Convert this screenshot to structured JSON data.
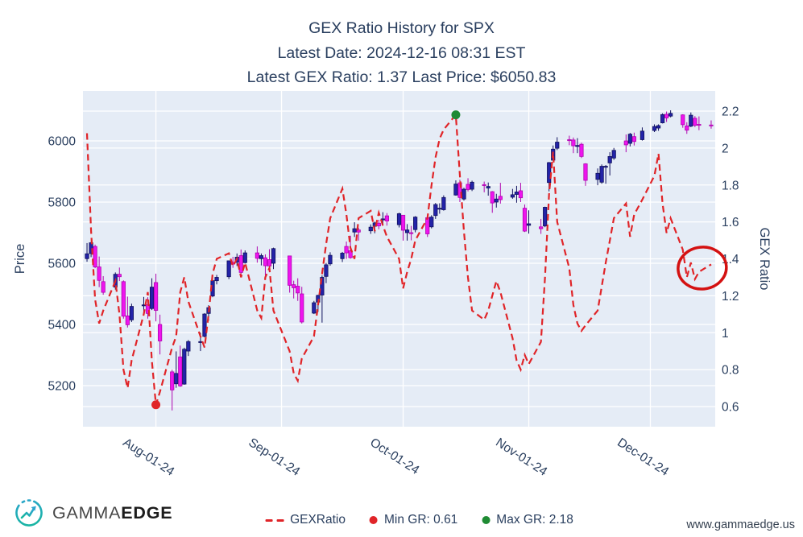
{
  "title": {
    "line1": "GEX Ratio History for SPX",
    "line2": "Latest Date: 2024-12-16 08:31 EST",
    "line3": "Latest GEX Ratio: 1.37 Last Price: $6050.83"
  },
  "logo": {
    "brand_regular": "GAMMA",
    "brand_bold": "EDGE"
  },
  "watermark": "www.gammaedge.us",
  "legend": [
    {
      "label": "GEXRatio",
      "type": "dash",
      "color": "#e02428"
    },
    {
      "label": "Min GR: 0.61",
      "type": "dot",
      "color": "#e02428"
    },
    {
      "label": "Max GR: 2.18",
      "type": "dot",
      "color": "#1f8b33"
    }
  ],
  "chart_data": {
    "type": "candlestick+line",
    "title": "GEX Ratio History for SPX",
    "latest": {
      "date": "2024-12-16 08:31 EST",
      "gex_ratio": 1.37,
      "last_price": 6050.83
    },
    "left_axis": {
      "label": "Price",
      "ticks": [
        5200,
        5400,
        5600,
        5800,
        6000
      ],
      "range": [
        5066,
        6163
      ]
    },
    "right_axis": {
      "label": "GEX Ratio",
      "ticks": [
        0.6,
        0.8,
        1,
        1.2,
        1.4,
        1.6,
        1.8,
        2,
        2.2
      ],
      "range": [
        0.49,
        2.31
      ]
    },
    "x_axis": {
      "range": [
        "2024-07-14",
        "2024-12-17"
      ],
      "ticks": [
        {
          "date": "2024-08-01",
          "label": "Aug-01-24"
        },
        {
          "date": "2024-09-01",
          "label": "Sep-01-24"
        },
        {
          "date": "2024-10-01",
          "label": "Oct-01-24"
        },
        {
          "date": "2024-11-01",
          "label": "Nov-01-24"
        },
        {
          "date": "2024-12-01",
          "label": "Dec-01-24"
        }
      ]
    },
    "colors": {
      "plot_bg": "#E5ECF6",
      "grid": "#ffffff",
      "text": "#2a3f5f",
      "up": "#2323a8",
      "up_line": "#12125e",
      "down": "#ee14ee",
      "down_line": "#b007b0",
      "gex_line": "#e02428",
      "min_dot": "#e02428",
      "max_dot": "#1f8b33",
      "annotation_circle": "#d41111"
    },
    "annotations": {
      "min": {
        "date": "2024-08-01",
        "value": 0.61,
        "label": "Min GR: 0.61"
      },
      "max": {
        "date": "2024-10-14",
        "value": 2.18,
        "label": "Max GR: 2.18"
      },
      "circle": {
        "date": "2024-12-13",
        "value": 1.35,
        "rx": 30,
        "ry": 26
      }
    },
    "series_names": {
      "candles": "SPX OHLC",
      "line": "GEXRatio"
    },
    "rows_format": [
      "date",
      "open",
      "high",
      "low",
      "close",
      "gex_ratio"
    ],
    "rows": [
      [
        "2024-07-15",
        5615,
        5666,
        5605,
        5631,
        2.08
      ],
      [
        "2024-07-16",
        5632,
        5670,
        5620,
        5667,
        1.55
      ],
      [
        "2024-07-17",
        5655,
        5661,
        5584,
        5588,
        1.18
      ],
      [
        "2024-07-18",
        5588,
        5622,
        5522,
        5544,
        1.05
      ],
      [
        "2024-07-19",
        5540,
        5558,
        5497,
        5505,
        1.12
      ],
      [
        "2024-07-22",
        5522,
        5570,
        5514,
        5564,
        1.28
      ],
      [
        "2024-07-23",
        5564,
        5586,
        5542,
        5556,
        1.1
      ],
      [
        "2024-07-24",
        5540,
        5544,
        5419,
        5427,
        0.8
      ],
      [
        "2024-07-25",
        5428,
        5491,
        5390,
        5399,
        0.7
      ],
      [
        "2024-07-26",
        5415,
        5468,
        5408,
        5459,
        0.85
      ],
      [
        "2024-07-29",
        5461,
        5490,
        5441,
        5464,
        1.1
      ],
      [
        "2024-07-30",
        5465,
        5489,
        5419,
        5436,
        1.22
      ],
      [
        "2024-07-31",
        5452,
        5551,
        5447,
        5522,
        0.85
      ],
      [
        "2024-08-01",
        5537,
        5566,
        5410,
        5446,
        0.61
      ],
      [
        "2024-08-02",
        5400,
        5432,
        5302,
        5346,
        0.68
      ],
      [
        "2024-08-05",
        5245,
        5252,
        5119,
        5186,
        0.92
      ],
      [
        "2024-08-06",
        5206,
        5312,
        5193,
        5240,
        0.98
      ],
      [
        "2024-08-07",
        5294,
        5331,
        5196,
        5199,
        1.22
      ],
      [
        "2024-08-08",
        5205,
        5324,
        5203,
        5319,
        1.3
      ],
      [
        "2024-08-09",
        5313,
        5349,
        5297,
        5344,
        1.17
      ],
      [
        "2024-08-12",
        5344,
        5373,
        5313,
        5344,
        0.98
      ],
      [
        "2024-08-13",
        5361,
        5437,
        5358,
        5434,
        0.92
      ],
      [
        "2024-08-14",
        5436,
        5463,
        5412,
        5455,
        1.1
      ],
      [
        "2024-08-15",
        5493,
        5546,
        5489,
        5543,
        1.32
      ],
      [
        "2024-08-16",
        5543,
        5562,
        5531,
        5554,
        1.4
      ],
      [
        "2024-08-19",
        5556,
        5609,
        5548,
        5608,
        1.43
      ],
      [
        "2024-08-20",
        5603,
        5621,
        5585,
        5597,
        1.36
      ],
      [
        "2024-08-21",
        5603,
        5632,
        5591,
        5620,
        1.4
      ],
      [
        "2024-08-22",
        5625,
        5645,
        5560,
        5570,
        1.3
      ],
      [
        "2024-08-23",
        5602,
        5642,
        5599,
        5634,
        1.38
      ],
      [
        "2024-08-26",
        5634,
        5655,
        5602,
        5616,
        1.12
      ],
      [
        "2024-08-27",
        5615,
        5632,
        5593,
        5625,
        1.08
      ],
      [
        "2024-08-28",
        5618,
        5629,
        5560,
        5592,
        1.3
      ],
      [
        "2024-08-29",
        5612,
        5646,
        5581,
        5591,
        1.35
      ],
      [
        "2024-08-30",
        5600,
        5651,
        5581,
        5648,
        1.12
      ],
      [
        "2024-09-03",
        5624,
        5625,
        5504,
        5528,
        0.9
      ],
      [
        "2024-09-04",
        5530,
        5543,
        5485,
        5520,
        0.78
      ],
      [
        "2024-09-05",
        5525,
        5551,
        5477,
        5503,
        0.74
      ],
      [
        "2024-09-06",
        5500,
        5523,
        5403,
        5408,
        0.86
      ],
      [
        "2024-09-09",
        5437,
        5477,
        5434,
        5471,
        0.98
      ],
      [
        "2024-09-10",
        5473,
        5497,
        5441,
        5495,
        1.15
      ],
      [
        "2024-09-11",
        5496,
        5560,
        5406,
        5554,
        1.32
      ],
      [
        "2024-09-12",
        5557,
        5601,
        5535,
        5595,
        1.48
      ],
      [
        "2024-09-13",
        5598,
        5636,
        5592,
        5626,
        1.62
      ],
      [
        "2024-09-16",
        5615,
        5637,
        5604,
        5633,
        1.78
      ],
      [
        "2024-09-17",
        5655,
        5671,
        5614,
        5634,
        1.64
      ],
      [
        "2024-09-18",
        5641,
        5690,
        5615,
        5618,
        1.46
      ],
      [
        "2024-09-19",
        5702,
        5734,
        5686,
        5713,
        1.4
      ],
      [
        "2024-09-20",
        5709,
        5716,
        5674,
        5702,
        1.62
      ],
      [
        "2024-09-23",
        5706,
        5727,
        5696,
        5718,
        1.66
      ],
      [
        "2024-09-24",
        5721,
        5736,
        5698,
        5732,
        1.55
      ],
      [
        "2024-09-25",
        5731,
        5742,
        5711,
        5722,
        1.65
      ],
      [
        "2024-09-26",
        5744,
        5767,
        5727,
        5745,
        1.58
      ],
      [
        "2024-09-27",
        5755,
        5764,
        5723,
        5738,
        1.52
      ],
      [
        "2024-09-30",
        5726,
        5765,
        5717,
        5762,
        1.4
      ],
      [
        "2024-10-01",
        5757,
        5758,
        5674,
        5708,
        1.24
      ],
      [
        "2024-10-02",
        5700,
        5728,
        5674,
        5709,
        1.33
      ],
      [
        "2024-10-03",
        5700,
        5722,
        5675,
        5699,
        1.4
      ],
      [
        "2024-10-04",
        5710,
        5754,
        5701,
        5751,
        1.5
      ],
      [
        "2024-10-07",
        5749,
        5758,
        5686,
        5696,
        1.62
      ],
      [
        "2024-10-08",
        5719,
        5757,
        5714,
        5751,
        1.8
      ],
      [
        "2024-10-09",
        5756,
        5797,
        5745,
        5792,
        1.95
      ],
      [
        "2024-10-10",
        5780,
        5796,
        5762,
        5780,
        2.05
      ],
      [
        "2024-10-11",
        5775,
        5822,
        5772,
        5815,
        2.1
      ],
      [
        "2024-10-14",
        5823,
        5871,
        5821,
        5859,
        2.18
      ],
      [
        "2024-10-15",
        5863,
        5873,
        5800,
        5815,
        1.85
      ],
      [
        "2024-10-16",
        5810,
        5847,
        5805,
        5842,
        1.55
      ],
      [
        "2024-10-17",
        5858,
        5878,
        5835,
        5841,
        1.3
      ],
      [
        "2024-10-18",
        5842,
        5870,
        5836,
        5865,
        1.12
      ],
      [
        "2024-10-21",
        5857,
        5867,
        5832,
        5854,
        1.07
      ],
      [
        "2024-10-22",
        5846,
        5864,
        5821,
        5851,
        1.12
      ],
      [
        "2024-10-23",
        5834,
        5836,
        5765,
        5797,
        1.2
      ],
      [
        "2024-10-24",
        5800,
        5827,
        5782,
        5810,
        1.28
      ],
      [
        "2024-10-25",
        5819,
        5863,
        5795,
        5808,
        1.22
      ],
      [
        "2024-10-28",
        5816,
        5843,
        5811,
        5824,
        0.97
      ],
      [
        "2024-10-29",
        5825,
        5853,
        5798,
        5833,
        0.85
      ],
      [
        "2024-10-30",
        5837,
        5863,
        5800,
        5814,
        0.8
      ],
      [
        "2024-10-31",
        5780,
        5792,
        5702,
        5705,
        0.88
      ],
      [
        "2024-11-01",
        5724,
        5773,
        5697,
        5729,
        0.83
      ],
      [
        "2024-11-04",
        5719,
        5745,
        5696,
        5713,
        0.95
      ],
      [
        "2024-11-05",
        5722,
        5785,
        5718,
        5783,
        1.3
      ],
      [
        "2024-11-06",
        5864,
        5931,
        5835,
        5929,
        1.75
      ],
      [
        "2024-11-07",
        5937,
        5985,
        5935,
        5973,
        1.98
      ],
      [
        "2024-11-08",
        5976,
        6012,
        5970,
        5996,
        1.6
      ],
      [
        "2024-11-11",
        6004,
        6017,
        5986,
        6001,
        1.35
      ],
      [
        "2024-11-12",
        6003,
        6011,
        5960,
        5984,
        1.15
      ],
      [
        "2024-11-13",
        5985,
        6009,
        5960,
        5985,
        1.05
      ],
      [
        "2024-11-14",
        5989,
        5994,
        5944,
        5949,
        1.01
      ],
      [
        "2024-11-15",
        5925,
        5927,
        5853,
        5871,
        1.04
      ],
      [
        "2024-11-18",
        5874,
        5910,
        5855,
        5894,
        1.12
      ],
      [
        "2024-11-19",
        5865,
        5923,
        5860,
        5917,
        1.25
      ],
      [
        "2024-11-20",
        5914,
        5921,
        5860,
        5917,
        1.38
      ],
      [
        "2024-11-21",
        5928,
        5963,
        5887,
        5949,
        1.5
      ],
      [
        "2024-11-22",
        5944,
        5977,
        5938,
        5969,
        1.62
      ],
      [
        "2024-11-25",
        6000,
        6021,
        5963,
        5987,
        1.7
      ],
      [
        "2024-11-26",
        5992,
        6026,
        5982,
        6022,
        1.52
      ],
      [
        "2024-11-27",
        6014,
        6027,
        5985,
        5998,
        1.64
      ],
      [
        "2024-11-29",
        6004,
        6044,
        6001,
        6032,
        1.72
      ],
      [
        "2024-12-02",
        6034,
        6054,
        6029,
        6047,
        1.85
      ],
      [
        "2024-12-03",
        6042,
        6054,
        6033,
        6050,
        1.97
      ],
      [
        "2024-12-04",
        6059,
        6090,
        6057,
        6086,
        1.7
      ],
      [
        "2024-12-05",
        6087,
        6096,
        6062,
        6075,
        1.54
      ],
      [
        "2024-12-06",
        6081,
        6100,
        6077,
        6090,
        1.62
      ],
      [
        "2024-12-09",
        6085,
        6087,
        6043,
        6053,
        1.45
      ],
      [
        "2024-12-10",
        6049,
        6061,
        6023,
        6035,
        1.3
      ],
      [
        "2024-12-11",
        6048,
        6093,
        6045,
        6084,
        1.38
      ],
      [
        "2024-12-12",
        6074,
        6081,
        6045,
        6051,
        1.29
      ],
      [
        "2024-12-13",
        6054,
        6080,
        6035,
        6051,
        1.33
      ],
      [
        "2024-12-16",
        6052,
        6067,
        6040,
        6050.83,
        1.37
      ]
    ]
  }
}
